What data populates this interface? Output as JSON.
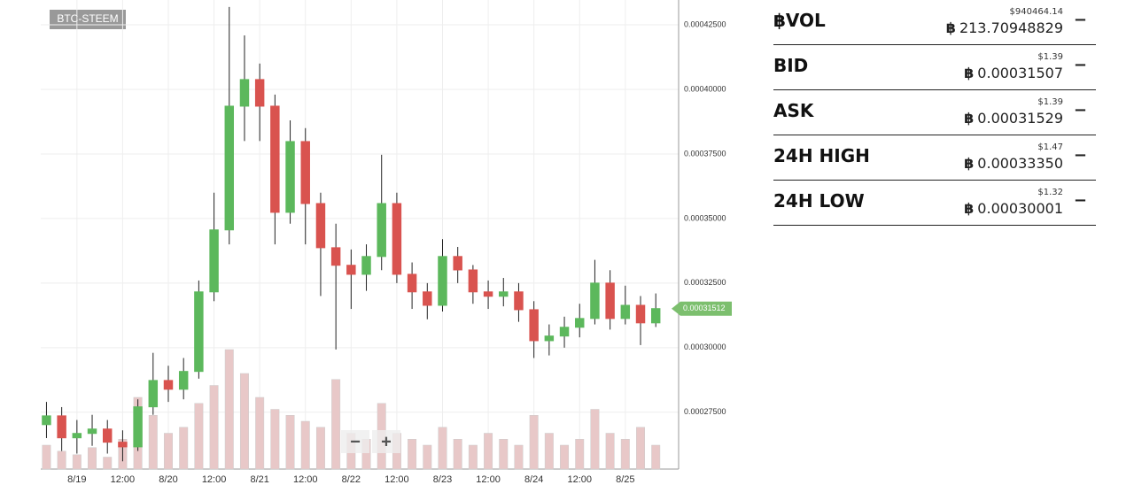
{
  "chart_data": {
    "type": "candlestick",
    "pair_label": "BTC-STEEM",
    "x": [
      "8/18 16:00",
      "8/18 20:00",
      "8/19 00:00",
      "8/19 04:00",
      "8/19 08:00",
      "8/19 12:00",
      "8/19 16:00",
      "8/19 20:00",
      "8/20 00:00",
      "8/20 04:00",
      "8/20 08:00",
      "8/20 12:00",
      "8/20 16:00",
      "8/20 20:00",
      "8/21 00:00",
      "8/21 04:00",
      "8/21 08:00",
      "8/21 12:00",
      "8/21 16:00",
      "8/21 20:00",
      "8/22 00:00",
      "8/22 04:00",
      "8/22 08:00",
      "8/22 12:00",
      "8/22 16:00",
      "8/22 20:00",
      "8/23 00:00",
      "8/23 04:00",
      "8/23 08:00",
      "8/23 12:00",
      "8/23 16:00",
      "8/23 20:00",
      "8/24 00:00",
      "8/24 04:00",
      "8/24 08:00",
      "8/24 12:00",
      "8/24 16:00",
      "8/24 20:00",
      "8/25 00:00",
      "8/25 04:00",
      "8/25 08:00"
    ],
    "open": [
      0.0002702,
      0.0002736,
      0.0002651,
      0.0002668,
      0.0002685,
      0.0002634,
      0.0002616,
      0.0002771,
      0.0002873,
      0.0002839,
      0.0002908,
      0.0003216,
      0.0003456,
      0.0003935,
      0.0004038,
      0.0003935,
      0.0003524,
      0.0003798,
      0.0003558,
      0.0003387,
      0.0003319,
      0.0003284,
      0.0003353,
      0.0003558,
      0.0003284,
      0.0003216,
      0.0003164,
      0.0003353,
      0.0003301,
      0.0003216,
      0.0003199,
      0.0003216,
      0.0003147,
      0.0003027,
      0.0003045,
      0.0003079,
      0.0003113,
      0.000325,
      0.0003113,
      0.0003164,
      0.0003096
    ],
    "high": [
      0.000279,
      0.000277,
      0.000272,
      0.000274,
      0.000272,
      0.000268,
      0.00028,
      0.000298,
      0.000293,
      0.000296,
      0.000326,
      0.00036,
      0.0004319,
      0.0004209,
      0.00041,
      0.000398,
      0.000388,
      0.000385,
      0.00036,
      0.000348,
      0.000338,
      0.00034,
      0.0003747,
      0.00036,
      0.000333,
      0.000325,
      0.000342,
      0.000339,
      0.000332,
      0.000326,
      0.000327,
      0.000325,
      0.000318,
      0.000309,
      0.000312,
      0.000317,
      0.000334,
      0.00033,
      0.000324,
      0.00032,
      0.000321
    ],
    "low": [
      0.000265,
      0.00026,
      0.000259,
      0.000262,
      0.000259,
      0.000256,
      0.00026,
      0.000274,
      0.000279,
      0.00028,
      0.000288,
      0.000318,
      0.00034,
      0.00038,
      0.00038,
      0.00034,
      0.000348,
      0.00034,
      0.00032,
      0.0002993,
      0.000315,
      0.000322,
      0.00033,
      0.000325,
      0.000315,
      0.000311,
      0.000314,
      0.000325,
      0.000317,
      0.000315,
      0.000316,
      0.00031,
      0.000296,
      0.000297,
      0.0003,
      0.000304,
      0.000309,
      0.000307,
      0.000309,
      0.000301,
      0.000308
    ],
    "close": [
      0.0002736,
      0.0002651,
      0.0002668,
      0.0002685,
      0.0002634,
      0.0002616,
      0.0002771,
      0.0002873,
      0.0002839,
      0.0002908,
      0.0003216,
      0.0003456,
      0.0003935,
      0.0004038,
      0.0003935,
      0.0003524,
      0.0003798,
      0.0003558,
      0.0003387,
      0.0003319,
      0.0003284,
      0.0003353,
      0.0003558,
      0.0003284,
      0.0003216,
      0.0003164,
      0.0003353,
      0.0003301,
      0.0003216,
      0.0003199,
      0.0003216,
      0.0003147,
      0.0003027,
      0.0003045,
      0.0003079,
      0.0003113,
      0.000325,
      0.0003113,
      0.0003164,
      0.0003096,
      0.00031512
    ],
    "volume": [
      20,
      15,
      12,
      18,
      10,
      25,
      60,
      45,
      30,
      35,
      55,
      70,
      100,
      80,
      60,
      50,
      45,
      40,
      35,
      75,
      30,
      25,
      55,
      30,
      25,
      20,
      35,
      25,
      20,
      30,
      25,
      20,
      45,
      30,
      20,
      25,
      50,
      30,
      25,
      35,
      20
    ],
    "up_color": "#5cb85c",
    "down_color": "#d9534f",
    "volume_color": "#e8c8c8",
    "last_price": 0.00031512,
    "last_price_color": "#7cbf6e",
    "xlim": [
      "8/18 14:30",
      "8/25 14:00"
    ],
    "xticks": [
      {
        "value": "8/19 00:00",
        "label": "8/19"
      },
      {
        "value": "8/19 12:00",
        "label": "12:00"
      },
      {
        "value": "8/20 00:00",
        "label": "8/20"
      },
      {
        "value": "8/20 12:00",
        "label": "12:00"
      },
      {
        "value": "8/21 00:00",
        "label": "8/21"
      },
      {
        "value": "8/21 12:00",
        "label": "12:00"
      },
      {
        "value": "8/22 00:00",
        "label": "8/22"
      },
      {
        "value": "8/22 12:00",
        "label": "12:00"
      },
      {
        "value": "8/23 00:00",
        "label": "8/23"
      },
      {
        "value": "8/23 12:00",
        "label": "12:00"
      },
      {
        "value": "8/24 00:00",
        "label": "8/24"
      },
      {
        "value": "8/24 12:00",
        "label": "12:00"
      },
      {
        "value": "8/25 00:00",
        "label": "8/25"
      }
    ],
    "ylim": [
      0.000253,
      0.0004346
    ],
    "yticks": [
      {
        "value": 0.000425,
        "label": "0.00042500"
      },
      {
        "value": 0.0004,
        "label": "0.00040000"
      },
      {
        "value": 0.000375,
        "label": "0.00037500"
      },
      {
        "value": 0.00035,
        "label": "0.00035000"
      },
      {
        "value": 0.000325,
        "label": "0.00032500"
      },
      {
        "value": 0.0003,
        "label": "0.00030000"
      },
      {
        "value": 0.000275,
        "label": "0.00027500"
      }
    ],
    "grid": true
  },
  "stats": [
    {
      "label": "฿VOL",
      "usd": "$940464.14",
      "btc": "213.70948829"
    },
    {
      "label": "BID",
      "usd": "$1.39",
      "btc": "0.00031507"
    },
    {
      "label": "ASK",
      "usd": "$1.39",
      "btc": "0.00031529"
    },
    {
      "label": "24H HIGH",
      "usd": "$1.47",
      "btc": "0.00033350"
    },
    {
      "label": "24H LOW",
      "usd": "$1.32",
      "btc": "0.00030001"
    }
  ]
}
